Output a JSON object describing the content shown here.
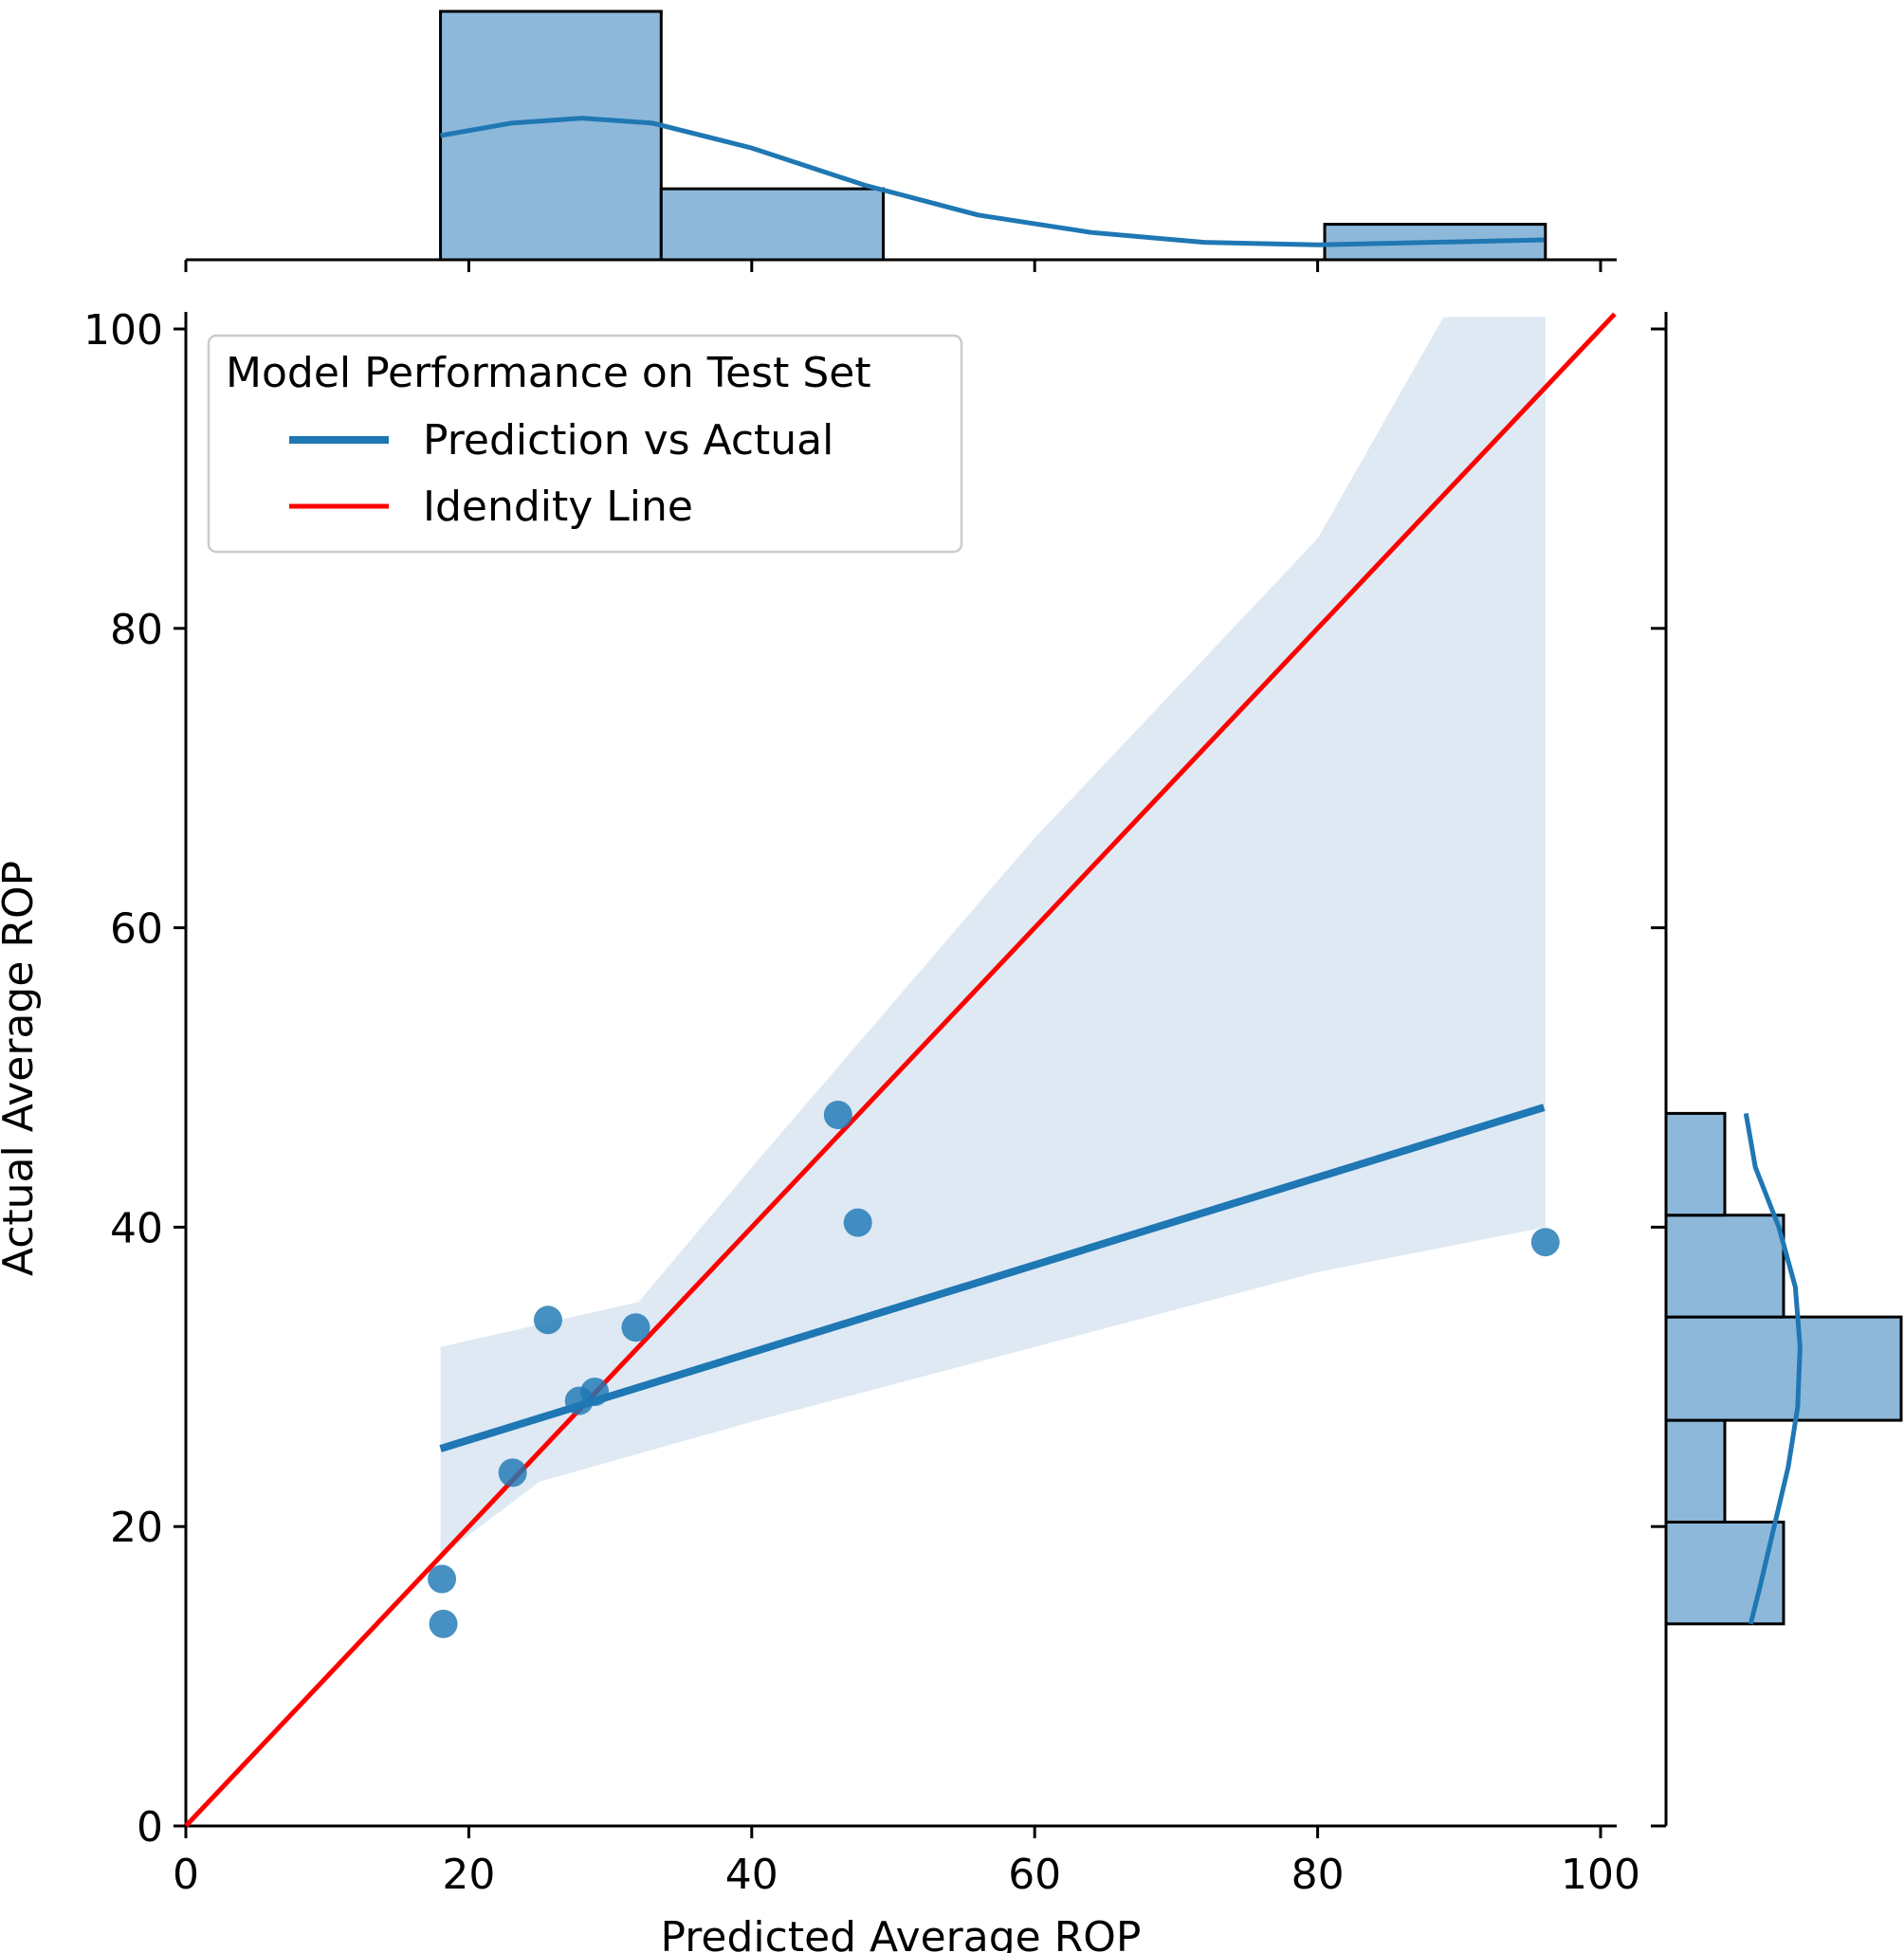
{
  "chart_data": {
    "type": "scatter",
    "subtype": "jointplot-regression",
    "xlabel": "Predicted Average ROP",
    "ylabel": "Actual Average ROP",
    "xlim": [
      0,
      100
    ],
    "ylim": [
      0,
      100
    ],
    "xticks": [
      "0",
      "20",
      "40",
      "60",
      "80",
      "100"
    ],
    "yticks": [
      "0",
      "20",
      "40",
      "60",
      "80",
      "100"
    ],
    "colors": {
      "series": "#1f77b4",
      "identity": "#ff0000",
      "band": "#dee9f4",
      "hist": "#8db8da"
    },
    "legend": {
      "title": "Model Performance on Test Set",
      "placement": "top-left",
      "entries": [
        {
          "label": "Prediction vs Actual",
          "color": "#1f77b4"
        },
        {
          "label": "Idendity Line",
          "color": "#ff0000"
        }
      ]
    },
    "points": [
      {
        "x": 18.1,
        "y": 16.5
      },
      {
        "x": 18.2,
        "y": 13.5
      },
      {
        "x": 23.1,
        "y": 23.6
      },
      {
        "x": 25.6,
        "y": 33.8
      },
      {
        "x": 27.8,
        "y": 28.4
      },
      {
        "x": 28.9,
        "y": 29.0
      },
      {
        "x": 31.8,
        "y": 33.3
      },
      {
        "x": 46.1,
        "y": 47.5
      },
      {
        "x": 47.5,
        "y": 40.3
      },
      {
        "x": 96.1,
        "y": 39.0
      }
    ],
    "regression": {
      "x": [
        18,
        96
      ],
      "y": [
        25.2,
        48.0
      ]
    },
    "confidence_band": {
      "upper": [
        [
          18,
          32
        ],
        [
          32,
          35
        ],
        [
          40,
          44
        ],
        [
          60,
          66
        ],
        [
          80,
          86
        ],
        [
          88.9,
          101
        ],
        [
          96.1,
          101
        ]
      ],
      "lower": [
        [
          96.1,
          40
        ],
        [
          80,
          37
        ],
        [
          60,
          32
        ],
        [
          40,
          27
        ],
        [
          25,
          23
        ],
        [
          18,
          18
        ]
      ]
    },
    "identity_line": {
      "x": [
        0,
        101
      ],
      "y": [
        0,
        101
      ]
    },
    "marginal_x": {
      "bins": [
        [
          18,
          33.6
        ],
        [
          33.6,
          49.3
        ],
        [
          80.5,
          96.1
        ]
      ],
      "counts": [
        7,
        2,
        1
      ],
      "kde": [
        [
          18,
          0.5
        ],
        [
          23,
          0.55
        ],
        [
          28,
          0.57
        ],
        [
          33,
          0.55
        ],
        [
          40,
          0.45
        ],
        [
          48,
          0.3
        ],
        [
          56,
          0.18
        ],
        [
          64,
          0.11
        ],
        [
          72,
          0.07
        ],
        [
          80,
          0.06
        ],
        [
          88,
          0.07
        ],
        [
          96,
          0.08
        ]
      ]
    },
    "marginal_y": {
      "bins": [
        [
          13.5,
          20.3
        ],
        [
          20.3,
          27.1
        ],
        [
          27.1,
          34.0
        ],
        [
          34.0,
          40.8
        ],
        [
          40.8,
          47.6
        ]
      ],
      "counts": [
        2,
        1,
        4,
        2,
        1
      ],
      "kde": [
        [
          13.5,
          0.36
        ],
        [
          16,
          0.4
        ],
        [
          20,
          0.46
        ],
        [
          24,
          0.52
        ],
        [
          28,
          0.56
        ],
        [
          32,
          0.57
        ],
        [
          36,
          0.55
        ],
        [
          40,
          0.48
        ],
        [
          44,
          0.38
        ],
        [
          47.6,
          0.34
        ]
      ]
    }
  }
}
